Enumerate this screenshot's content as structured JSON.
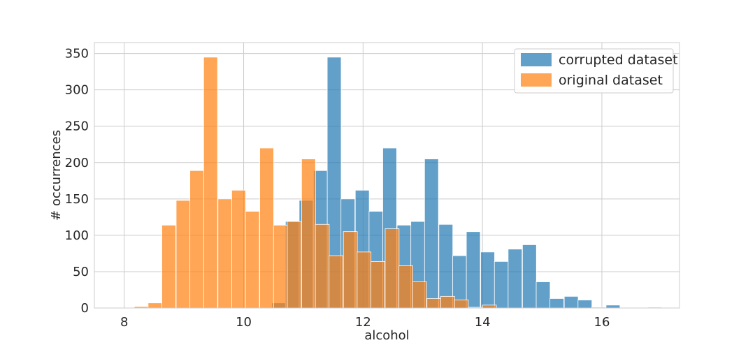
{
  "chart_data": {
    "type": "bar",
    "subtype": "overlaid-histogram",
    "title": "",
    "xlabel": "alcohol",
    "ylabel": "# occurrences",
    "xlim": [
      7.5,
      17.3
    ],
    "ylim": [
      0,
      365
    ],
    "xticks": [
      8,
      10,
      12,
      14,
      16
    ],
    "yticks": [
      0,
      50,
      100,
      150,
      200,
      250,
      300,
      350
    ],
    "grid": true,
    "legend_position": "top-right",
    "series": [
      {
        "name": "corrupted dataset",
        "color": "#1f77b4",
        "opacity": 0.7,
        "bin_width": 0.233,
        "bins": [
          {
            "x0": 10.47,
            "value": 7
          },
          {
            "x0": 10.7,
            "value": 119
          },
          {
            "x0": 10.93,
            "value": 148
          },
          {
            "x0": 11.17,
            "value": 189
          },
          {
            "x0": 11.4,
            "value": 345
          },
          {
            "x0": 11.63,
            "value": 150
          },
          {
            "x0": 11.87,
            "value": 162
          },
          {
            "x0": 12.1,
            "value": 133
          },
          {
            "x0": 12.33,
            "value": 220
          },
          {
            "x0": 12.57,
            "value": 114
          },
          {
            "x0": 12.8,
            "value": 119
          },
          {
            "x0": 13.03,
            "value": 205
          },
          {
            "x0": 13.27,
            "value": 115
          },
          {
            "x0": 13.5,
            "value": 72
          },
          {
            "x0": 13.73,
            "value": 105
          },
          {
            "x0": 13.97,
            "value": 77
          },
          {
            "x0": 14.2,
            "value": 64
          },
          {
            "x0": 14.43,
            "value": 81
          },
          {
            "x0": 14.67,
            "value": 87
          },
          {
            "x0": 14.9,
            "value": 36
          },
          {
            "x0": 15.13,
            "value": 13
          },
          {
            "x0": 15.37,
            "value": 16
          },
          {
            "x0": 15.6,
            "value": 11
          },
          {
            "x0": 15.83,
            "value": 1
          },
          {
            "x0": 16.07,
            "value": 4
          },
          {
            "x0": 16.3,
            "value": 0
          },
          {
            "x0": 16.53,
            "value": 0
          },
          {
            "x0": 16.77,
            "value": 1
          }
        ]
      },
      {
        "name": "original dataset",
        "color": "#ff7f0e",
        "opacity": 0.7,
        "bin_width": 0.233,
        "bins": [
          {
            "x0": 7.93,
            "value": 0
          },
          {
            "x0": 8.17,
            "value": 2
          },
          {
            "x0": 8.4,
            "value": 7
          },
          {
            "x0": 8.63,
            "value": 114
          },
          {
            "x0": 8.87,
            "value": 148
          },
          {
            "x0": 9.1,
            "value": 189
          },
          {
            "x0": 9.33,
            "value": 345
          },
          {
            "x0": 9.57,
            "value": 150
          },
          {
            "x0": 9.8,
            "value": 162
          },
          {
            "x0": 10.03,
            "value": 133
          },
          {
            "x0": 10.27,
            "value": 220
          },
          {
            "x0": 10.5,
            "value": 114
          },
          {
            "x0": 10.73,
            "value": 119
          },
          {
            "x0": 10.97,
            "value": 205
          },
          {
            "x0": 11.2,
            "value": 115
          },
          {
            "x0": 11.43,
            "value": 72
          },
          {
            "x0": 11.67,
            "value": 105
          },
          {
            "x0": 11.9,
            "value": 77
          },
          {
            "x0": 12.13,
            "value": 64
          },
          {
            "x0": 12.37,
            "value": 109
          },
          {
            "x0": 12.6,
            "value": 58
          },
          {
            "x0": 12.83,
            "value": 36
          },
          {
            "x0": 13.07,
            "value": 13
          },
          {
            "x0": 13.3,
            "value": 16
          },
          {
            "x0": 13.53,
            "value": 11
          },
          {
            "x0": 13.77,
            "value": 1
          },
          {
            "x0": 14.0,
            "value": 4
          }
        ]
      }
    ]
  }
}
